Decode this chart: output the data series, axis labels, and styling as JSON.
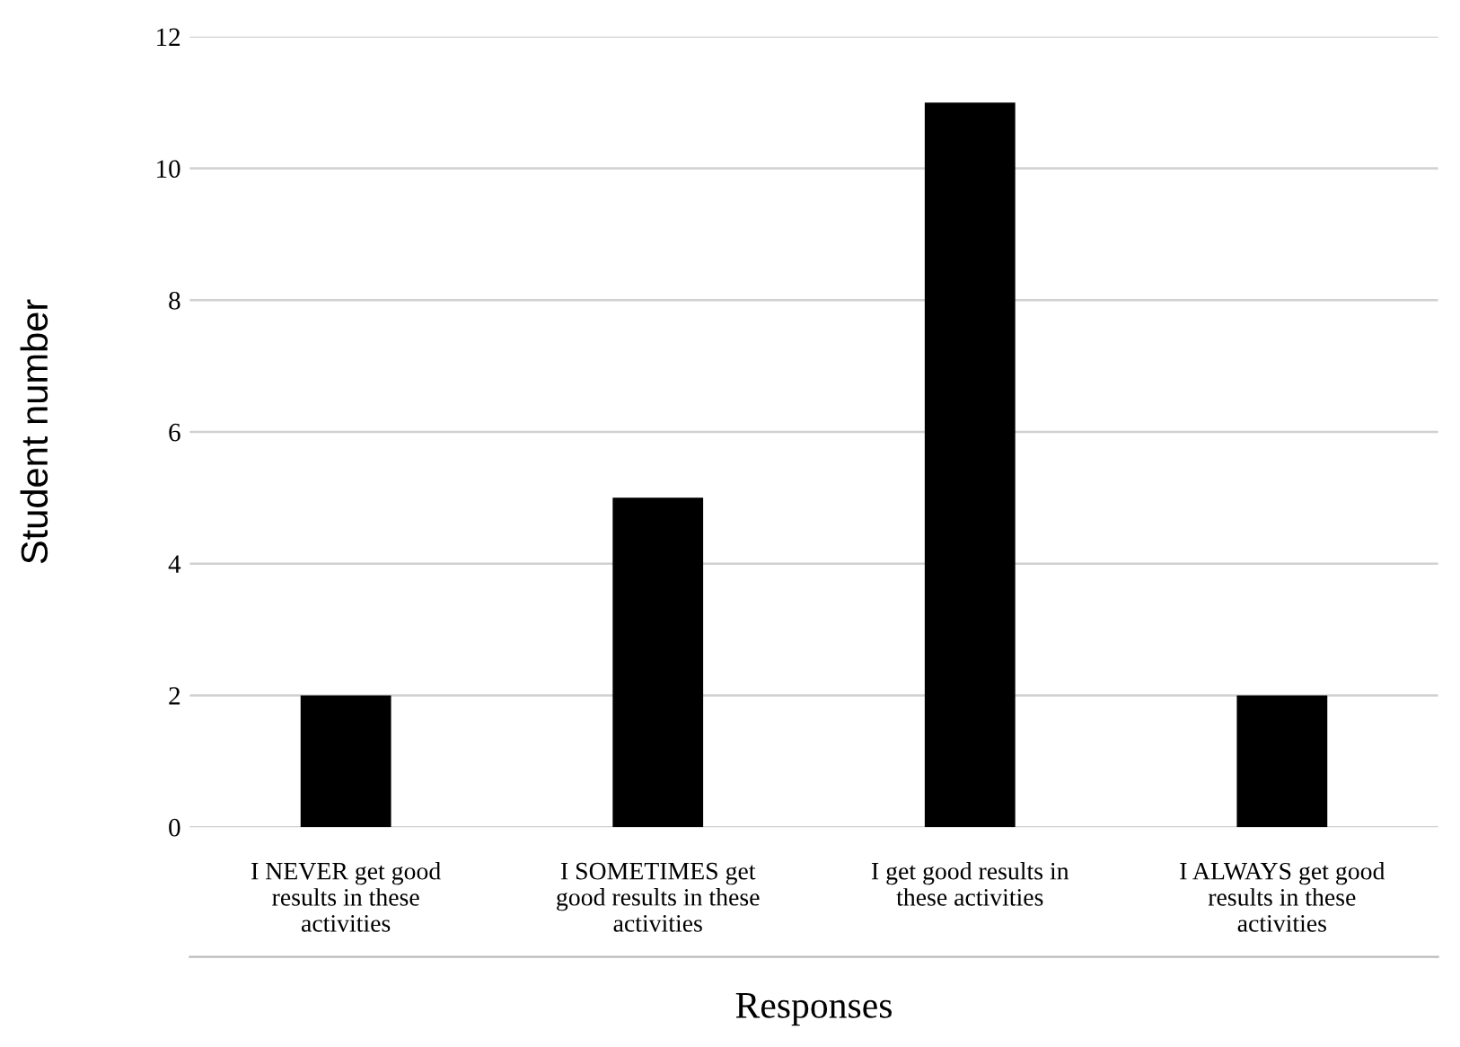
{
  "chart_data": {
    "type": "bar",
    "xlabel": "Responses",
    "ylabel": "Student number",
    "categories": [
      "I NEVER get good\nresults in these\nactivities",
      "I SOMETIMES get\ngood results in these\nactivities",
      "I get good results in\nthese activities",
      "I ALWAYS get good\nresults in these\nactivities"
    ],
    "values": [
      2,
      5,
      11,
      2
    ],
    "color": "#000000",
    "ylim": [
      0,
      12
    ],
    "yticks": [
      0,
      2,
      4,
      6,
      8,
      10,
      12
    ],
    "grid": "y",
    "legend": false
  }
}
